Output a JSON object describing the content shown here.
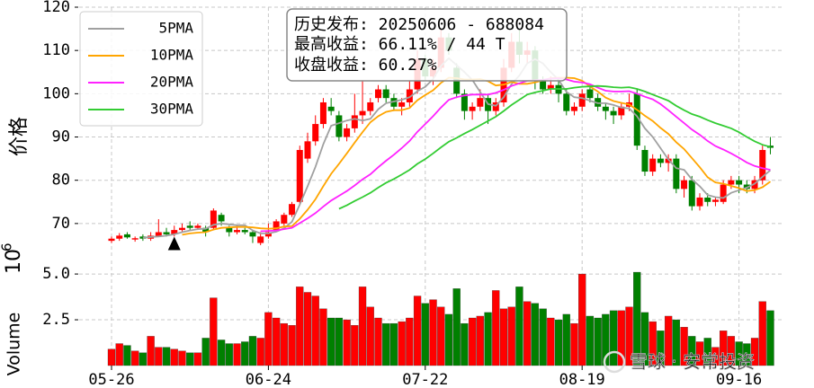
{
  "chart_data": [
    {
      "type": "candlestick",
      "ylabel": "价格",
      "categories": [
        "05-26",
        null,
        null,
        null,
        null,
        null,
        null,
        null,
        null,
        null,
        null,
        null,
        null,
        null,
        null,
        null,
        null,
        null,
        null,
        null,
        "06-24",
        null,
        null,
        null,
        null,
        null,
        null,
        null,
        null,
        null,
        null,
        null,
        null,
        null,
        null,
        null,
        null,
        null,
        null,
        null,
        "07-22",
        null,
        null,
        null,
        null,
        null,
        null,
        null,
        null,
        null,
        null,
        null,
        null,
        null,
        null,
        null,
        null,
        null,
        null,
        null,
        "08-19",
        null,
        null,
        null,
        null,
        null,
        null,
        null,
        null,
        null,
        null,
        null,
        null,
        null,
        null,
        null,
        null,
        null,
        null,
        null,
        "09-16",
        null,
        null,
        null,
        null
      ],
      "open": [
        66,
        66.5,
        67.5,
        66.3,
        67,
        66.5,
        67,
        68,
        67.5,
        68.5,
        69.5,
        69,
        69,
        69,
        72,
        69,
        68,
        68.5,
        68,
        65.5,
        67,
        68.5,
        70,
        72,
        75,
        85,
        89,
        93,
        97,
        95,
        90,
        92,
        95,
        96,
        99,
        101,
        99,
        97,
        98,
        101,
        108,
        104,
        106,
        113,
        106,
        100,
        96,
        97,
        99,
        96,
        98,
        106,
        112,
        109,
        110,
        103,
        101,
        102,
        100,
        96,
        97,
        101,
        99,
        97,
        96,
        95,
        97,
        100,
        87,
        82,
        85,
        84,
        85,
        78,
        80,
        74,
        76,
        75,
        75,
        79,
        80,
        79,
        78,
        80,
        88
      ],
      "high": [
        67,
        67.8,
        68,
        67,
        67.5,
        68,
        71,
        69,
        69.5,
        70,
        70.5,
        70,
        69.5,
        73.5,
        72.5,
        69.5,
        69.5,
        69,
        68.5,
        68,
        70,
        71,
        72.5,
        75,
        88,
        91,
        95,
        99,
        99,
        96,
        93,
        100,
        103,
        99,
        102,
        102,
        100,
        99,
        103,
        110,
        109,
        108,
        115,
        114,
        107,
        101,
        98,
        101,
        100,
        99,
        108,
        114,
        115,
        112,
        111,
        104,
        104,
        103,
        101,
        98,
        101,
        102,
        100,
        98,
        97,
        98,
        100,
        101,
        88,
        86,
        86,
        86,
        86,
        81,
        81,
        77,
        77,
        76,
        80,
        81,
        81,
        80,
        81,
        88,
        90
      ],
      "low": [
        65.5,
        66,
        66.5,
        65.8,
        66,
        66,
        67,
        67,
        67,
        68,
        68.5,
        68.5,
        67,
        68.5,
        69.5,
        67,
        67.5,
        67.5,
        65.5,
        65,
        66.5,
        68,
        69.5,
        71.5,
        74.5,
        84,
        88,
        92,
        95,
        89,
        89,
        91,
        93,
        95,
        98,
        98,
        96,
        95,
        97,
        100,
        103,
        102,
        105,
        109,
        99,
        94,
        94,
        96,
        93,
        95,
        97,
        105,
        107,
        107,
        101,
        100,
        100,
        98,
        95,
        95,
        96,
        98,
        96,
        94,
        93,
        94,
        96,
        87,
        81,
        81,
        83,
        82,
        77,
        76,
        73,
        73,
        74,
        74,
        74.5,
        78,
        77,
        77,
        77,
        79,
        86
      ],
      "close": [
        66.5,
        67.2,
        66.8,
        66.6,
        66.5,
        67.2,
        68,
        67.5,
        68.5,
        69,
        69,
        69.5,
        68,
        73,
        70.5,
        68,
        68.5,
        68,
        67,
        67,
        68,
        70.5,
        72,
        74.5,
        87,
        89,
        93,
        98,
        96,
        90,
        92,
        95,
        96,
        98,
        101,
        99,
        97,
        98,
        101,
        108,
        104,
        106,
        113,
        110,
        100,
        96,
        97,
        99,
        96,
        98,
        106,
        112,
        109,
        110,
        103,
        101,
        102,
        100,
        96,
        97,
        100,
        99,
        97,
        96,
        95,
        97,
        98,
        88,
        82,
        85,
        84,
        85,
        78,
        80,
        74,
        76,
        75,
        75.5,
        79,
        80,
        79,
        78,
        80,
        87,
        87.5
      ],
      "up_color": "#ff0000",
      "down_color": "#008000",
      "series": [
        {
          "name": "5PMA",
          "color": "#a0a0a0",
          "values": [
            null,
            null,
            null,
            null,
            66.7,
            66.9,
            67.0,
            67.2,
            67.5,
            68.0,
            68.4,
            68.7,
            68.8,
            69.7,
            70.0,
            69.8,
            69.6,
            69.6,
            68.4,
            67.7,
            67.7,
            68.1,
            68.9,
            70.4,
            74.4,
            78.6,
            83.1,
            88.3,
            92.6,
            93.2,
            93.8,
            94.2,
            93.8,
            94.2,
            96.4,
            97.8,
            98.2,
            98.6,
            99.2,
            100.6,
            101.6,
            103.4,
            106.4,
            108.2,
            106.6,
            105.0,
            103.2,
            100.4,
            97.6,
            97.2,
            99.2,
            102.2,
            104.2,
            107.0,
            108.0,
            107.0,
            105.0,
            103.2,
            100.4,
            99.2,
            99.0,
            98.4,
            97.8,
            97.8,
            97.4,
            96.8,
            96.6,
            94.8,
            92.0,
            90.0,
            87.4,
            84.8,
            82.8,
            82.4,
            80.2,
            78.6,
            76.6,
            76.1,
            75.9,
            77.1,
            77.7,
            78.3,
            79.2,
            80.8,
            82.3
          ]
        },
        {
          "name": "10PMA",
          "color": "#ffa500",
          "values": [
            null,
            null,
            null,
            null,
            null,
            null,
            null,
            null,
            null,
            67.4,
            67.7,
            67.9,
            68.0,
            68.6,
            69.0,
            69.1,
            69.2,
            69.2,
            69.1,
            68.9,
            68.8,
            68.9,
            69.3,
            69.4,
            71.1,
            73.2,
            75.6,
            78.6,
            81.5,
            83.8,
            86.2,
            88.7,
            91.1,
            93.4,
            94.8,
            95.8,
            96.2,
            96.2,
            96.7,
            98.5,
            99.7,
            100.8,
            102.5,
            103.7,
            103.6,
            103.3,
            103.3,
            103.4,
            102.9,
            101.9,
            102.1,
            102.7,
            102.3,
            102.3,
            102.6,
            103.1,
            103.6,
            103.7,
            103.7,
            103.6,
            103.0,
            101.7,
            100.5,
            99.1,
            98.3,
            97.9,
            97.5,
            96.3,
            94.9,
            93.7,
            92.1,
            90.7,
            88.8,
            87.2,
            85.1,
            83.0,
            80.7,
            79.5,
            79.2,
            78.7,
            78.2,
            77.5,
            77.7,
            78.4,
            79.7
          ]
        },
        {
          "name": "20PMA",
          "color": "#ff22ff",
          "values": [
            null,
            null,
            null,
            null,
            null,
            null,
            null,
            null,
            null,
            null,
            null,
            null,
            null,
            null,
            null,
            null,
            null,
            null,
            null,
            68.2,
            68.3,
            68.4,
            68.7,
            69.0,
            70.1,
            71.2,
            72.4,
            73.9,
            75.3,
            76.4,
            77.5,
            78.8,
            80.2,
            81.4,
            83.0,
            84.5,
            85.9,
            87.4,
            89.1,
            91.2,
            93.0,
            94.8,
            96.8,
            98.6,
            99.2,
            99.6,
            99.8,
            99.8,
            99.8,
            100.2,
            100.9,
            101.8,
            102.4,
            103.0,
            103.1,
            103.2,
            103.5,
            103.6,
            103.3,
            102.8,
            102.6,
            102.2,
            101.4,
            100.7,
            100.5,
            100.5,
            100.6,
            100.0,
            99.3,
            98.7,
            97.6,
            96.2,
            94.7,
            93.2,
            91.7,
            90.5,
            89.1,
            87.9,
            87.1,
            86.2,
            85.2,
            84.1,
            83.3,
            82.8,
            82.4
          ]
        },
        {
          "name": "30PMA",
          "color": "#33cc33",
          "values": [
            null,
            null,
            null,
            null,
            null,
            null,
            null,
            null,
            null,
            null,
            null,
            null,
            null,
            null,
            null,
            null,
            null,
            null,
            null,
            null,
            null,
            null,
            null,
            null,
            null,
            null,
            null,
            null,
            null,
            73.4,
            74.2,
            75.2,
            76.1,
            77.1,
            78.3,
            79.4,
            80.3,
            81.3,
            82.4,
            83.8,
            84.9,
            86.2,
            87.6,
            88.9,
            89.8,
            90.8,
            91.7,
            92.7,
            93.7,
            94.7,
            96.0,
            97.4,
            98.6,
            99.8,
            100.3,
            100.7,
            101.1,
            101.1,
            101.1,
            101.4,
            101.6,
            101.7,
            101.8,
            101.7,
            101.5,
            101.4,
            101.5,
            101.1,
            100.5,
            99.8,
            99.1,
            98.4,
            97.2,
            96.2,
            95.3,
            94.7,
            93.9,
            93.2,
            92.6,
            92.0,
            91.1,
            90.0,
            89.0,
            88.2,
            87.7
          ]
        }
      ],
      "ylim": [
        62.5,
        120
      ],
      "yticks": [
        70,
        80,
        90,
        100,
        110,
        120
      ],
      "grid": true,
      "legend": "upper left",
      "annotation": [
        "历史发布: 20250606 - 688084",
        "最高收益: 66.11% / 44 T",
        "收盘收益: 60.27%"
      ],
      "release_marker": {
        "index": 8,
        "value": 65.3
      }
    },
    {
      "type": "bar",
      "ylabel": "Volume",
      "scale_base": "10",
      "scale_exponent": "6",
      "values": [
        0.9,
        1.2,
        1.1,
        0.8,
        0.7,
        1.6,
        1.0,
        1.0,
        0.9,
        0.8,
        0.7,
        0.7,
        1.5,
        3.7,
        1.4,
        1.2,
        1.2,
        1.3,
        1.6,
        1.5,
        2.9,
        2.6,
        2.3,
        2.2,
        4.3,
        4.0,
        3.8,
        3.1,
        2.6,
        2.6,
        2.5,
        2.2,
        4.3,
        3.2,
        2.6,
        2.3,
        2.3,
        2.4,
        2.6,
        3.8,
        3.4,
        3.6,
        3.2,
        2.8,
        4.2,
        2.3,
        2.6,
        2.7,
        2.9,
        4.1,
        3.1,
        3.2,
        4.3,
        3.5,
        3.4,
        3.1,
        2.6,
        2.5,
        2.8,
        2.3,
        5.0,
        2.7,
        2.6,
        2.8,
        3.0,
        3.0,
        3.2,
        5.1,
        2.9,
        2.4,
        1.9,
        2.7,
        2.5,
        2.1,
        1.6,
        1.3,
        1.5,
        1.0,
        1.9,
        1.6,
        1.3,
        1.2,
        1.5,
        3.5,
        3.0
      ],
      "ylim": [
        0,
        5.74
      ],
      "yticks": [
        2.5,
        {
          "value": 5,
          "label": "5.0"
        }
      ],
      "grid": true,
      "watermark": "雪球 · 安常投资"
    }
  ]
}
